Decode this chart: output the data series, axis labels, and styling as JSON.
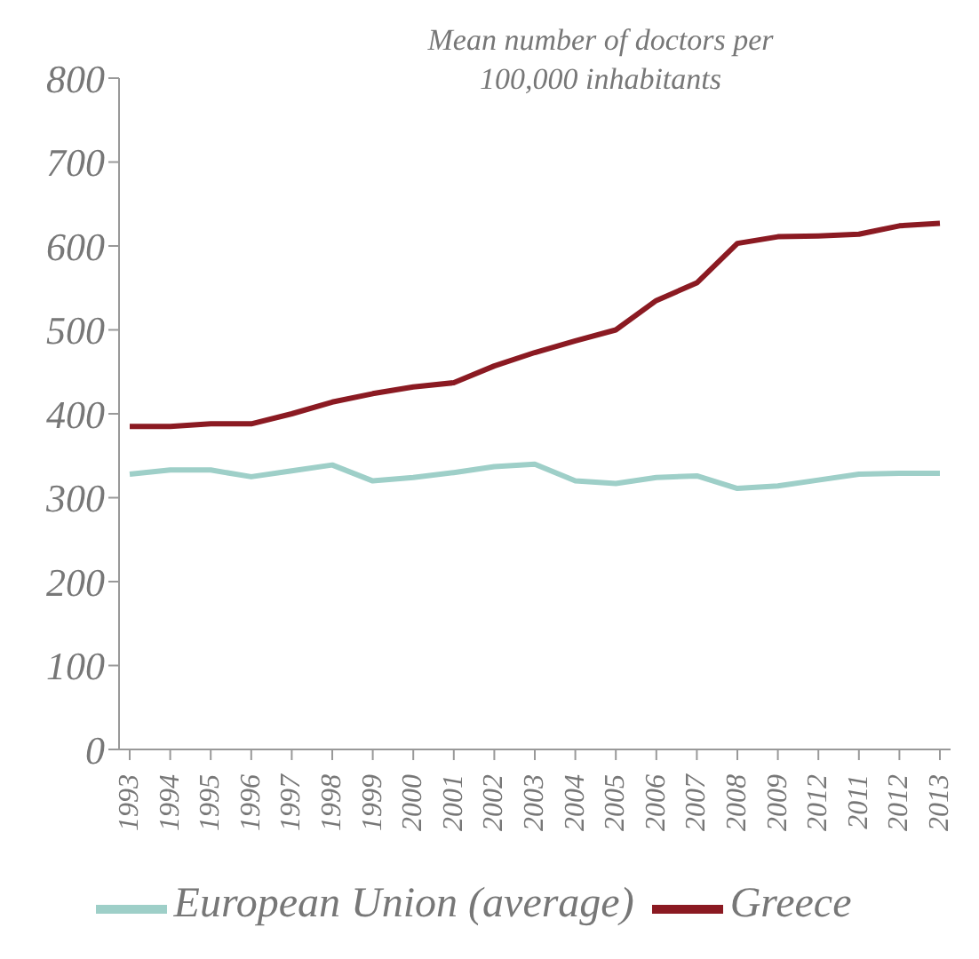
{
  "chart_data": {
    "type": "line",
    "title": "Mean number of doctors per 100,000 inhabitants",
    "categories": [
      "1993",
      "1994",
      "1995",
      "1996",
      "1997",
      "1998",
      "1999",
      "2000",
      "2001",
      "2002",
      "2003",
      "2004",
      "2005",
      "2006",
      "2007",
      "2008",
      "2009",
      "2012",
      "2011",
      "2012",
      "2013"
    ],
    "series": [
      {
        "name": "Greece",
        "color": "#8b1a22",
        "values": [
          385,
          385,
          388,
          388,
          400,
          414,
          424,
          432,
          437,
          457,
          473,
          487,
          500,
          535,
          556,
          603,
          611,
          612,
          614,
          624,
          627
        ]
      },
      {
        "name": "European Union (average)",
        "color": "#9ecfc8",
        "values": [
          328,
          333,
          333,
          325,
          332,
          339,
          320,
          324,
          330,
          337,
          340,
          320,
          317,
          324,
          326,
          311,
          314,
          321,
          328,
          329,
          329
        ]
      }
    ],
    "ylim": [
      0,
      800
    ],
    "yticks": [
      0,
      100,
      200,
      300,
      400,
      500,
      600,
      700,
      800
    ],
    "grid": false,
    "legend": "bottom",
    "marker": "none",
    "line_style": "solid"
  }
}
